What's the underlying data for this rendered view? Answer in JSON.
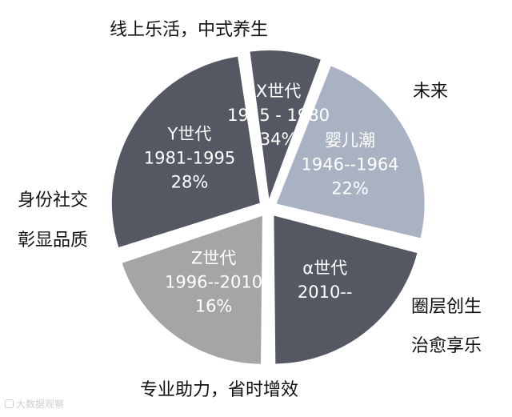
{
  "chart_data": {
    "type": "pie",
    "title": "",
    "slices": [
      {
        "label": "婴儿潮",
        "years": "1946--1964",
        "value": 22,
        "value_label": "22%",
        "color": "#a9b2c3",
        "start_deg": -69,
        "exploded": true
      },
      {
        "label": "α世代",
        "years": "2010--",
        "value": null,
        "value_label": "",
        "color": "#535863",
        "start_deg": 14,
        "exploded": true
      },
      {
        "label": "Z世代",
        "years": "1996--2010",
        "value": 16,
        "value_label": "16%",
        "color": "#a7a4a4",
        "start_deg": 90,
        "exploded": true
      },
      {
        "label": "Y世代",
        "years": "1981-1995",
        "value": 28,
        "value_label": "28%",
        "color": "#535863",
        "start_deg": 162,
        "exploded": true
      },
      {
        "label": "X世代",
        "years": "1965 - 1980",
        "value": 34,
        "value_label": "34%",
        "color": "#535863",
        "start_deg": 262,
        "exploded": true
      }
    ],
    "annotations": [
      {
        "text": "线上乐活，中式养生"
      },
      {
        "text": "未来"
      },
      {
        "text": "身份社交"
      },
      {
        "text": "彰显品质"
      },
      {
        "text": "圈层创生"
      },
      {
        "text": "治愈享乐"
      },
      {
        "text": "专业助力，省时增效"
      }
    ]
  },
  "watermark": {
    "text": "大数据观察"
  }
}
